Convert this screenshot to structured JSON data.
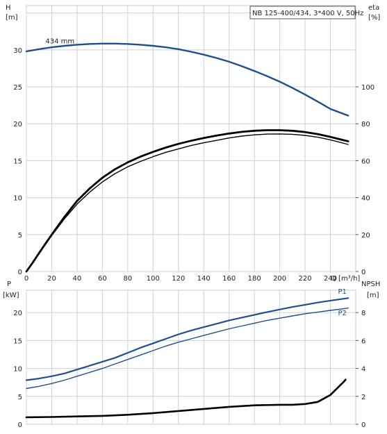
{
  "chart_data": [
    {
      "type": "line",
      "title": "NB 125-400/434, 3*400 V, 50Hz",
      "left_axis": {
        "label_line1": "H",
        "label_line2": "[m]",
        "ticks": [
          0,
          5,
          10,
          15,
          20,
          25,
          30
        ],
        "range": [
          0,
          36
        ]
      },
      "right_axis": {
        "label_line1": "eta",
        "label_line2": "[%]",
        "ticks": [
          0,
          20,
          40,
          60,
          80,
          100
        ],
        "range": [
          0,
          144
        ]
      },
      "x_axis": {
        "label": "Q [m³/h]",
        "ticks": [
          0,
          20,
          40,
          60,
          80,
          100,
          120,
          140,
          160,
          180,
          200,
          220,
          240
        ],
        "range": [
          0,
          260
        ]
      },
      "grid": true,
      "series": [
        {
          "name": "434 mm",
          "axis": "left",
          "color": "#1f4e8c",
          "points": [
            [
              0,
              29.8
            ],
            [
              10,
              30.1
            ],
            [
              20,
              30.35
            ],
            [
              30,
              30.55
            ],
            [
              40,
              30.7
            ],
            [
              50,
              30.8
            ],
            [
              60,
              30.85
            ],
            [
              70,
              30.85
            ],
            [
              80,
              30.8
            ],
            [
              90,
              30.7
            ],
            [
              100,
              30.55
            ],
            [
              110,
              30.35
            ],
            [
              120,
              30.1
            ],
            [
              130,
              29.75
            ],
            [
              140,
              29.35
            ],
            [
              150,
              28.9
            ],
            [
              160,
              28.4
            ],
            [
              170,
              27.8
            ],
            [
              180,
              27.15
            ],
            [
              190,
              26.45
            ],
            [
              200,
              25.7
            ],
            [
              210,
              24.85
            ],
            [
              220,
              23.95
            ],
            [
              230,
              23.0
            ],
            [
              240,
              22.0
            ],
            [
              254,
              21.1
            ]
          ]
        },
        {
          "axis": "right",
          "color": "#000000",
          "points": [
            [
              0,
              0
            ],
            [
              5,
              4.5
            ],
            [
              10,
              9.5
            ],
            [
              15,
              14.5
            ],
            [
              20,
              19.5
            ],
            [
              25,
              24
            ],
            [
              30,
              28.5
            ],
            [
              40,
              36.5
            ],
            [
              50,
              43
            ],
            [
              60,
              48.5
            ],
            [
              70,
              53
            ],
            [
              80,
              56.7
            ],
            [
              90,
              59.6
            ],
            [
              100,
              62.2
            ],
            [
              110,
              64.5
            ],
            [
              120,
              66.4
            ],
            [
              130,
              68.2
            ],
            [
              140,
              69.7
            ],
            [
              150,
              71
            ],
            [
              160,
              72.3
            ],
            [
              170,
              73.3
            ],
            [
              180,
              74
            ],
            [
              190,
              74.4
            ],
            [
              200,
              74.5
            ],
            [
              210,
              74.3
            ],
            [
              220,
              73.7
            ],
            [
              230,
              72.7
            ],
            [
              240,
              71.3
            ],
            [
              254,
              68.8
            ]
          ]
        },
        {
          "axis": "right",
          "color": "#000000",
          "points": [
            [
              0,
              0
            ],
            [
              5,
              4.8
            ],
            [
              10,
              10
            ],
            [
              15,
              15
            ],
            [
              20,
              20
            ],
            [
              25,
              24.8
            ],
            [
              30,
              29.5
            ],
            [
              40,
              38.2
            ],
            [
              50,
              45
            ],
            [
              60,
              50.8
            ],
            [
              70,
              55.4
            ],
            [
              80,
              59.1
            ],
            [
              90,
              62.2
            ],
            [
              100,
              64.8
            ],
            [
              110,
              67.1
            ],
            [
              120,
              69.1
            ],
            [
              130,
              70.8
            ],
            [
              140,
              72.3
            ],
            [
              150,
              73.6
            ],
            [
              160,
              74.7
            ],
            [
              170,
              75.6
            ],
            [
              180,
              76.2
            ],
            [
              190,
              76.5
            ],
            [
              200,
              76.5
            ],
            [
              210,
              76.2
            ],
            [
              220,
              75.5
            ],
            [
              230,
              74.4
            ],
            [
              240,
              72.9
            ],
            [
              254,
              70.5
            ]
          ]
        }
      ]
    },
    {
      "type": "line",
      "left_axis": {
        "label_line1": "P",
        "label_line2": "[kW]",
        "ticks": [
          0,
          5,
          10,
          15,
          20
        ],
        "range": [
          0,
          24
        ]
      },
      "right_axis": {
        "label_line1": "NPSH",
        "label_line2": "[m]",
        "ticks": [
          0,
          2,
          4,
          6,
          8
        ],
        "range": [
          0,
          9.6
        ]
      },
      "x_axis": {
        "ticks": [
          0,
          20,
          40,
          60,
          80,
          100,
          120,
          140,
          160,
          180,
          200,
          220,
          240
        ],
        "range": [
          0,
          260
        ]
      },
      "grid": true,
      "series": [
        {
          "name": "P1",
          "axis": "left",
          "color": "#1f4e8c",
          "points": [
            [
              0,
              7.9
            ],
            [
              10,
              8.2
            ],
            [
              20,
              8.6
            ],
            [
              30,
              9.1
            ],
            [
              40,
              9.8
            ],
            [
              50,
              10.5
            ],
            [
              60,
              11.2
            ],
            [
              70,
              11.9
            ],
            [
              80,
              12.8
            ],
            [
              90,
              13.7
            ],
            [
              100,
              14.5
            ],
            [
              110,
              15.3
            ],
            [
              120,
              16.1
            ],
            [
              130,
              16.8
            ],
            [
              140,
              17.4
            ],
            [
              150,
              18.0
            ],
            [
              160,
              18.6
            ],
            [
              170,
              19.1
            ],
            [
              180,
              19.6
            ],
            [
              190,
              20.1
            ],
            [
              200,
              20.55
            ],
            [
              210,
              21.0
            ],
            [
              220,
              21.4
            ],
            [
              230,
              21.8
            ],
            [
              240,
              22.15
            ],
            [
              254,
              22.6
            ]
          ]
        },
        {
          "name": "P2",
          "axis": "left",
          "color": "#1f4e8c",
          "points": [
            [
              0,
              6.4
            ],
            [
              10,
              6.8
            ],
            [
              20,
              7.3
            ],
            [
              30,
              7.9
            ],
            [
              40,
              8.6
            ],
            [
              50,
              9.3
            ],
            [
              60,
              10.0
            ],
            [
              70,
              10.8
            ],
            [
              80,
              11.6
            ],
            [
              90,
              12.4
            ],
            [
              100,
              13.2
            ],
            [
              110,
              14.0
            ],
            [
              120,
              14.7
            ],
            [
              130,
              15.3
            ],
            [
              140,
              15.9
            ],
            [
              150,
              16.5
            ],
            [
              160,
              17.1
            ],
            [
              170,
              17.6
            ],
            [
              180,
              18.1
            ],
            [
              190,
              18.6
            ],
            [
              200,
              19.0
            ],
            [
              210,
              19.4
            ],
            [
              220,
              19.8
            ],
            [
              230,
              20.1
            ],
            [
              240,
              20.4
            ],
            [
              254,
              20.8
            ]
          ]
        },
        {
          "axis": "right",
          "color": "#000000",
          "points": [
            [
              0,
              0.5
            ],
            [
              20,
              0.52
            ],
            [
              40,
              0.56
            ],
            [
              60,
              0.6
            ],
            [
              80,
              0.68
            ],
            [
              100,
              0.8
            ],
            [
              120,
              0.95
            ],
            [
              140,
              1.1
            ],
            [
              160,
              1.25
            ],
            [
              180,
              1.36
            ],
            [
              200,
              1.4
            ],
            [
              210,
              1.4
            ],
            [
              220,
              1.45
            ],
            [
              230,
              1.6
            ],
            [
              240,
              2.1
            ],
            [
              250,
              3.0
            ],
            [
              252,
              3.2
            ]
          ]
        }
      ]
    }
  ]
}
